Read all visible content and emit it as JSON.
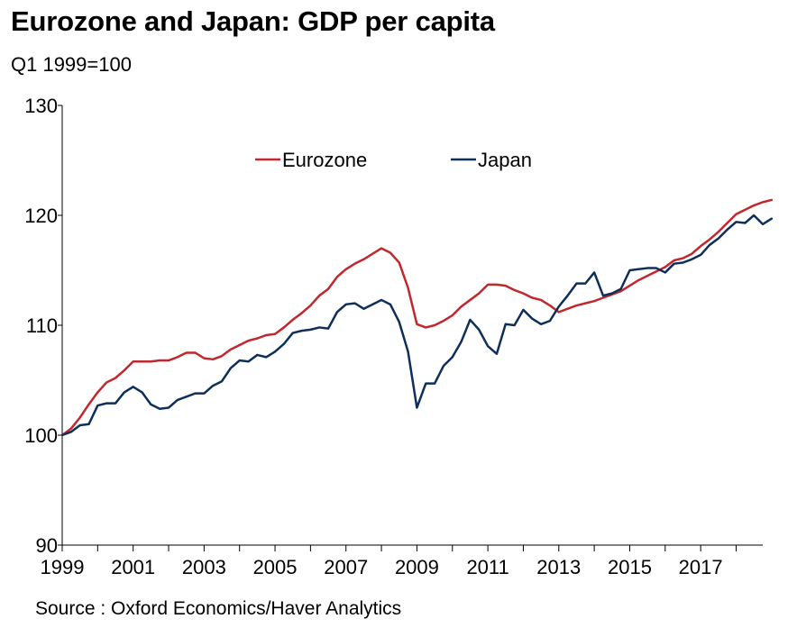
{
  "title": "Eurozone and Japan: GDP per capita",
  "subtitle": "Q1 1999=100",
  "source": "Source : Oxford Economics/Haver Analytics",
  "chart_data": {
    "type": "line",
    "title": "Eurozone and Japan: GDP per capita",
    "subtitle": "Q1 1999=100",
    "xlabel": "",
    "ylabel": "",
    "ylim": [
      90,
      130
    ],
    "yticks": [
      90,
      100,
      110,
      120,
      130
    ],
    "xlim": [
      1999,
      2018.75
    ],
    "xtick_labels": [
      "1999",
      "2001",
      "2003",
      "2005",
      "2007",
      "2009",
      "2011",
      "2013",
      "2015",
      "2017"
    ],
    "xtick_values": [
      1999,
      2001,
      2003,
      2005,
      2007,
      2009,
      2011,
      2013,
      2015,
      2017
    ],
    "grid": false,
    "legend_position": "top-center",
    "x_start": 1999,
    "x_step": 0.25,
    "series": [
      {
        "name": "Eurozone",
        "color": "#c1272d",
        "values": [
          100.0,
          100.6,
          101.6,
          102.8,
          103.9,
          104.8,
          105.2,
          105.9,
          106.7,
          106.7,
          106.7,
          106.8,
          106.8,
          107.1,
          107.5,
          107.5,
          107.0,
          106.9,
          107.2,
          107.8,
          108.2,
          108.6,
          108.8,
          109.1,
          109.2,
          109.8,
          110.5,
          111.1,
          111.8,
          112.7,
          113.3,
          114.4,
          115.1,
          115.6,
          116.0,
          116.5,
          117.0,
          116.6,
          115.7,
          113.4,
          110.1,
          109.8,
          110.0,
          110.4,
          110.9,
          111.7,
          112.3,
          112.9,
          113.7,
          113.7,
          113.6,
          113.2,
          112.9,
          112.5,
          112.3,
          111.8,
          111.2,
          111.5,
          111.8,
          112.0,
          112.2,
          112.5,
          112.8,
          113.1,
          113.6,
          114.1,
          114.5,
          114.9,
          115.3,
          115.9,
          116.1,
          116.5,
          117.2,
          117.8,
          118.5,
          119.3,
          120.1,
          120.5,
          120.9,
          121.2,
          121.4
        ]
      },
      {
        "name": "Japan",
        "color": "#0e2f5a",
        "values": [
          100.0,
          100.3,
          100.9,
          101.0,
          102.7,
          102.9,
          102.9,
          103.9,
          104.4,
          103.9,
          102.8,
          102.4,
          102.5,
          103.2,
          103.5,
          103.8,
          103.8,
          104.5,
          104.9,
          106.1,
          106.8,
          106.7,
          107.3,
          107.1,
          107.6,
          108.3,
          109.3,
          109.5,
          109.6,
          109.8,
          109.7,
          111.2,
          111.9,
          112.0,
          111.5,
          111.9,
          112.3,
          111.9,
          110.3,
          107.6,
          102.5,
          104.7,
          104.7,
          106.3,
          107.1,
          108.5,
          110.5,
          109.6,
          108.1,
          107.4,
          110.1,
          110.0,
          111.4,
          110.6,
          110.1,
          110.4,
          111.7,
          112.7,
          113.8,
          113.8,
          114.8,
          112.7,
          112.9,
          113.3,
          115.0,
          115.1,
          115.2,
          115.2,
          114.8,
          115.6,
          115.7,
          116.0,
          116.4,
          117.3,
          117.9,
          118.7,
          119.4,
          119.3,
          120.0,
          119.2,
          119.7
        ]
      }
    ]
  }
}
